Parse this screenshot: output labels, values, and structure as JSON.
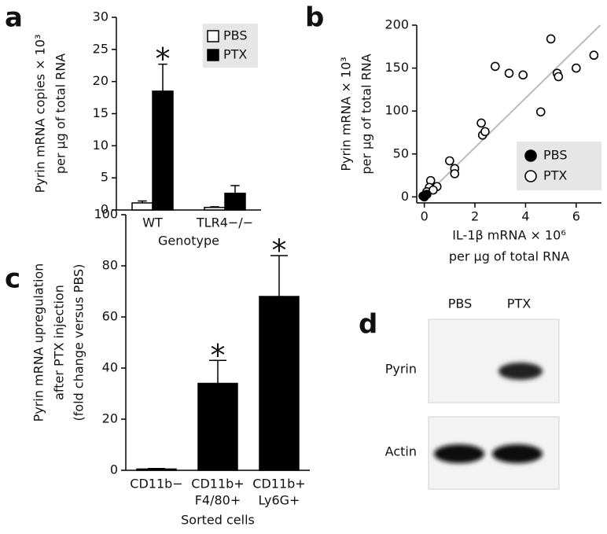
{
  "chart_data": [
    {
      "type": "bar",
      "panel": "a",
      "ylabel": [
        "Pyrin mRNA copies × 10³",
        "per µg of total RNA"
      ],
      "xlabel": "Genotype",
      "categories": [
        "WT",
        "TLR4−/−"
      ],
      "series": [
        {
          "name": "PBS",
          "color": "#ffffff",
          "edge": "#000000",
          "values": [
            1.1,
            0.4
          ],
          "errors": [
            0.3,
            0.1
          ],
          "annotations": [
            null,
            null
          ]
        },
        {
          "name": "PTX",
          "color": "#000000",
          "edge": "#000000",
          "values": [
            18.5,
            2.6
          ],
          "errors": [
            4.2,
            1.2
          ],
          "annotations": [
            "*",
            null
          ]
        }
      ],
      "ylim": [
        0,
        30
      ],
      "yticks": [
        0,
        5,
        10,
        15,
        20,
        25,
        30
      ],
      "legend": "upper right"
    },
    {
      "type": "scatter",
      "panel": "b",
      "ylabel": [
        "Pyrin mRNA × 10³",
        "per µg of total RNA"
      ],
      "xlabel": [
        "IL-1β mRNA × 10⁶",
        "per µg of total RNA"
      ],
      "series": [
        {
          "name": "PBS",
          "color": "#000000",
          "fill": "#000000",
          "x": [
            0,
            0.05,
            -0.05,
            0.1
          ],
          "y": [
            0,
            2,
            1,
            3
          ]
        },
        {
          "name": "PTX",
          "color": "#000000",
          "fill": "#ffffff",
          "x": [
            5.0,
            2.8,
            3.35,
            3.9,
            5.25,
            5.3,
            6.0,
            6.7,
            4.6,
            2.25,
            2.3,
            2.4,
            1.0,
            1.2,
            1.2,
            0.25,
            0.5,
            0.2,
            0.1,
            0.35
          ],
          "y": [
            184,
            152,
            144,
            142,
            144,
            140,
            150,
            165,
            99,
            86,
            72,
            76,
            42,
            33,
            27,
            19,
            12,
            11,
            6,
            8
          ]
        }
      ],
      "trend_line": {
        "color": "#bbbbbb",
        "x": [
          -0.1,
          6.95
        ],
        "y": [
          -3,
          200
        ]
      },
      "xlim": [
        -0.3,
        7
      ],
      "xticks": [
        0,
        2,
        4,
        6
      ],
      "ylim": [
        -7,
        200
      ],
      "yticks": [
        0,
        50,
        100,
        150,
        200
      ],
      "legend": "lower right"
    },
    {
      "type": "bar",
      "panel": "c",
      "ylabel": [
        "Pyrin mRNA upregulation",
        "after PTX injection",
        "(fold change versus PBS)"
      ],
      "xlabel": "Sorted cells",
      "categories": [
        [
          "CD11b−"
        ],
        [
          "CD11b+",
          "F4/80+"
        ],
        [
          "CD11b+",
          "Ly6G+"
        ]
      ],
      "series": [
        {
          "name": null,
          "color": "#000000",
          "edge": "#000000",
          "values": [
            0.5,
            34,
            68
          ],
          "errors": [
            0.2,
            9,
            16
          ],
          "annotations": [
            null,
            "*",
            "*"
          ]
        }
      ],
      "ylim": [
        0,
        100
      ],
      "yticks": [
        0,
        20,
        40,
        60,
        80,
        100
      ]
    }
  ],
  "blot": {
    "panel": "d",
    "columns": [
      "PBS",
      "PTX"
    ],
    "rows": [
      "Pyrin",
      "Actin"
    ]
  }
}
